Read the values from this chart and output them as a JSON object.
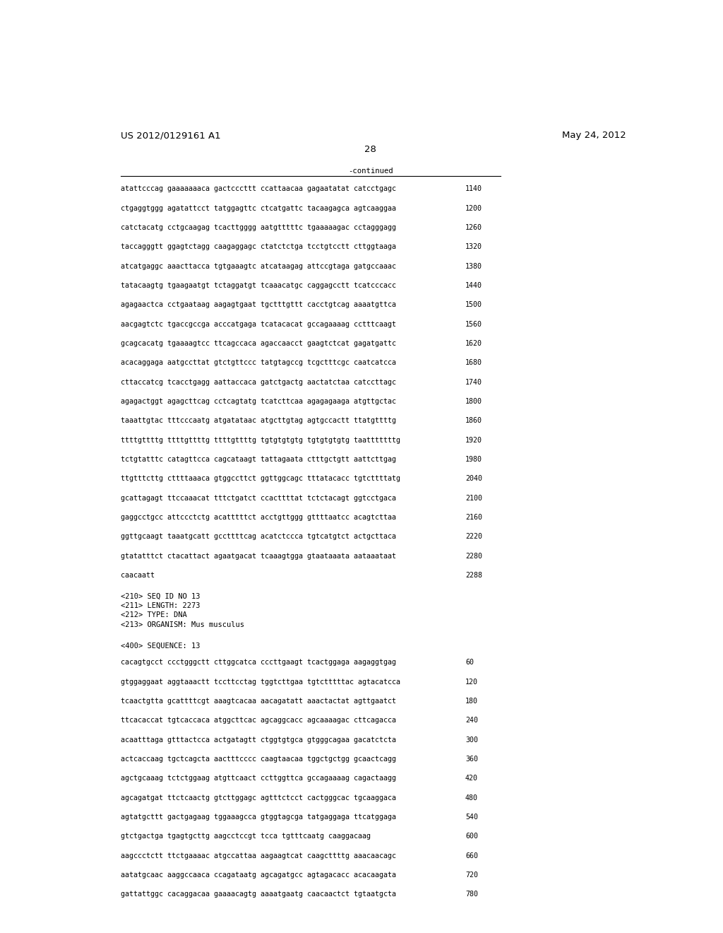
{
  "header_left": "US 2012/0129161 A1",
  "header_right": "May 24, 2012",
  "page_number": "28",
  "continued_label": "-continued",
  "background_color": "#ffffff",
  "text_color": "#000000",
  "sequence_lines_top": [
    [
      "atattcccag gaaaaaaaca gactcccttt ccattaacaa gagaatatat catcctgagc",
      "1140"
    ],
    [
      "ctgaggtggg agatattcct tatggagttc ctcatgattc tacaagagca agtcaaggaa",
      "1200"
    ],
    [
      "catctacatg cctgcaagag tcacttgggg aatgtttttc tgaaaaagac cctagggagg",
      "1260"
    ],
    [
      "taccagggtt ggagtctagg caagaggagc ctatctctga tcctgtcctt cttggtaaga",
      "1320"
    ],
    [
      "atcatgaggc aaacttacca tgtgaaagtc atcataagag attccgtaga gatgccaaac",
      "1380"
    ],
    [
      "tatacaagtg tgaagaatgt tctaggatgt tcaaacatgc caggagcctt tcatcccacc",
      "1440"
    ],
    [
      "agagaactca cctgaataag aagagtgaat tgctttgttt cacctgtcag aaaatgttca",
      "1500"
    ],
    [
      "aacgagtctc tgaccgccga acccatgaga tcatacacat gccagaaaag cctttcaagt",
      "1560"
    ],
    [
      "gcagcacatg tgaaaagtcc ttcagccaca agaccaacct gaagtctcat gagatgattc",
      "1620"
    ],
    [
      "acacaggaga aatgccttat gtctgttccc tatgtagccg tcgctttcgc caatcatcca",
      "1680"
    ],
    [
      "cttaccatcg tcacctgagg aattaccaca gatctgactg aactatctaa catccttagc",
      "1740"
    ],
    [
      "agagactggt agagcttcag cctcagtatg tcatcttcaa agagagaaga atgttgctac",
      "1800"
    ],
    [
      "taaattgtac tttcccaatg atgatataac atgcttgtag agtgccactt ttatgttttg",
      "1860"
    ],
    [
      "ttttgttttg ttttgttttg ttttgttttg tgtgtgtgtg tgtgtgtgtg taatttttttg",
      "1920"
    ],
    [
      "tctgtatttc catagttcca cagcataagt tattagaata ctttgctgtt aattcttgag",
      "1980"
    ],
    [
      "ttgtttcttg cttttaaaca gtggccttct ggttggcagc tttatacacc tgtcttttatg",
      "2040"
    ],
    [
      "gcattagagt ttccaaacat tttctgatct ccacttttat tctctacagt ggtcctgaca",
      "2100"
    ],
    [
      "gaggcctgcc attccctctg acatttttct acctgttggg gttttaatcc acagtcttaa",
      "2160"
    ],
    [
      "ggttgcaagt taaatgcatt gccttttcag acatctccca tgtcatgtct actgcttaca",
      "2220"
    ],
    [
      "gtatatttct ctacattact agaatgacat tcaaagtgga gtaataaata aataaataat",
      "2280"
    ],
    [
      "caacaatt",
      "2288"
    ]
  ],
  "metadata_lines": [
    "<210> SEQ ID NO 13",
    "<211> LENGTH: 2273",
    "<212> TYPE: DNA",
    "<213> ORGANISM: Mus musculus"
  ],
  "sequence_label": "<400> SEQUENCE: 13",
  "sequence_lines_bottom": [
    [
      "cacagtgcct ccctgggctt cttggcatca cccttgaagt tcactggaga aagaggtgag",
      "60"
    ],
    [
      "gtggaggaat aggtaaactt tccttcctag tggtcttgaa tgtctttttac agtacatcca",
      "120"
    ],
    [
      "tcaactgtta gcattttcgt aaagtcacaa aacagatatt aaactactat agttgaatct",
      "180"
    ],
    [
      "ttcacaccat tgtcaccaca atggcttcac agcaggcacc agcaaaagac cttcagacca",
      "240"
    ],
    [
      "acaatttaga gtttactcca actgatagtt ctggtgtgca gtgggcagaa gacatctcta",
      "300"
    ],
    [
      "actcaccaag tgctcagcta aactttcccc caagtaacaa tggctgctgg gcaactcagg",
      "360"
    ],
    [
      "agctgcaaag tctctggaag atgttcaact ccttggttca gccagaaaag cagactaagg",
      "420"
    ],
    [
      "agcagatgat ttctcaactg gtcttggagc agtttctcct cactgggcac tgcaaggaca",
      "480"
    ],
    [
      "agtatgcttt gactgagaag tggaaagcca gtggtagcga tatgaggaga ttcatggaga",
      "540"
    ],
    [
      "gtctgactga tgagtgcttg aagcctccgt tcca tgtttcaatg caaggacaag",
      "600"
    ],
    [
      "aagccctctt ttctgaaaac atgccattaa aagaagtcat caagcttttg aaacaacagc",
      "660"
    ],
    [
      "aatatgcaac aaggccaaca ccagataatg agcagatgcc agtagacacc acacaagata",
      "720"
    ],
    [
      "gattattggc cacaggacaa gaaaacagtg aaaatgaatg caacaactct tgtaatgcta",
      "780"
    ]
  ],
  "fig_width": 10.24,
  "fig_height": 13.2,
  "dpi": 100
}
